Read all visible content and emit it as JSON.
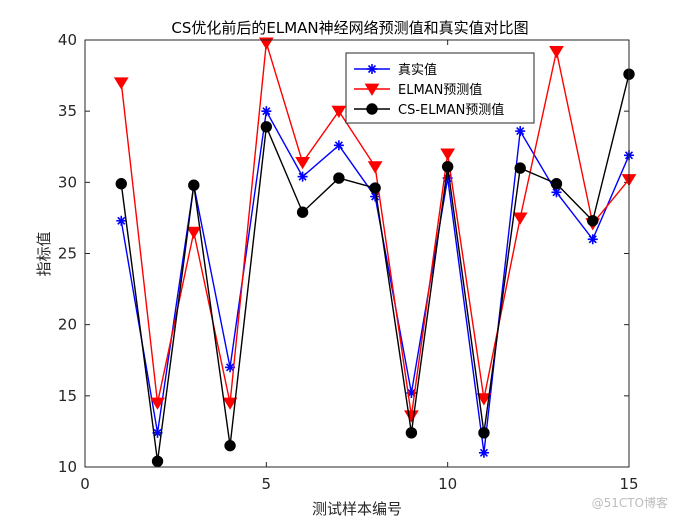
{
  "chart_data": {
    "type": "line",
    "title": "CS优化前后的ELMAN神经网络预测值和真实值对比图",
    "xlabel": "测试样本编号",
    "ylabel": "指标值",
    "xlim": [
      0,
      15
    ],
    "ylim": [
      10,
      40
    ],
    "xticks": [
      0,
      5,
      10,
      15
    ],
    "yticks": [
      10,
      15,
      20,
      25,
      30,
      35,
      40
    ],
    "grid": false,
    "legend_position": "top-right",
    "x": [
      1,
      2,
      3,
      4,
      5,
      6,
      7,
      8,
      9,
      10,
      11,
      12,
      13,
      14,
      15
    ],
    "series": [
      {
        "name": "真实值",
        "color": "#0000ff",
        "marker": "asterisk",
        "values": [
          27.3,
          12.4,
          29.8,
          17.0,
          35.0,
          30.4,
          32.6,
          29.0,
          15.2,
          30.3,
          11.0,
          33.6,
          29.3,
          26.0,
          31.9
        ]
      },
      {
        "name": "ELMAN预测值",
        "color": "#ff0000",
        "marker": "triangle-down",
        "values": [
          37.0,
          14.5,
          26.5,
          14.5,
          39.8,
          31.4,
          35.0,
          31.1,
          13.6,
          32.0,
          14.8,
          27.5,
          39.2,
          27.1,
          30.2
        ]
      },
      {
        "name": "CS-ELMAN预测值",
        "color": "#000000",
        "marker": "circle",
        "values": [
          29.9,
          10.4,
          29.8,
          11.5,
          33.9,
          27.9,
          30.3,
          29.6,
          12.4,
          31.1,
          12.4,
          31.0,
          29.9,
          27.3,
          37.6
        ]
      }
    ]
  },
  "watermark": "@51CTO博客"
}
